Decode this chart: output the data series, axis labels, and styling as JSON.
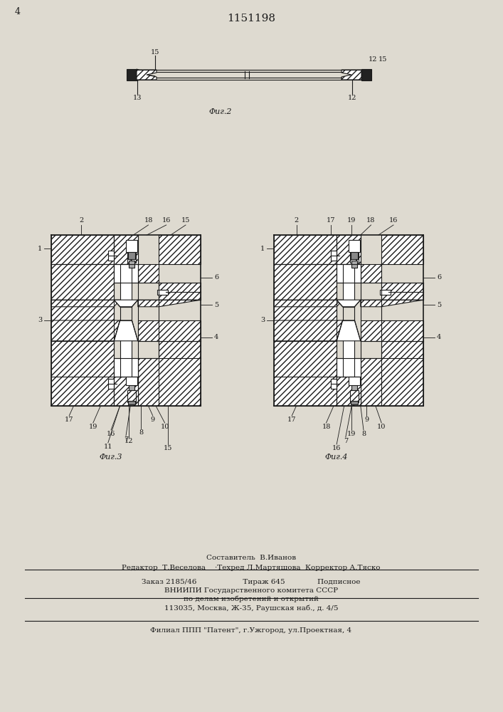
{
  "patent_number": "1151198",
  "page_number": "4",
  "bg_color": "#dedad0",
  "line_color": "#1a1a1a",
  "fig2_caption": "Φиг.2",
  "fig3_caption": "Φиг.3",
  "fig4_caption": "Φиг.4",
  "footer_line1": "Составитель  В.Иванов",
  "footer_line2": "Редактор  Т.Веселова    ·Техред Л.Мартяшова  Корректор А.Тяско",
  "footer_line3": "Заказ 2185/46                    Тираж 645              Подписное",
  "footer_line4": "ВНИИПИ Государственного комитета СССР",
  "footer_line5": "по делам изобретений и открытий",
  "footer_line6": "113035, Москва, Ж-35, Раушская наб., д. 4/5",
  "footer_line7": "Филиал ППП \"Патент\", г.Ужгород, ул.Проектная, 4"
}
